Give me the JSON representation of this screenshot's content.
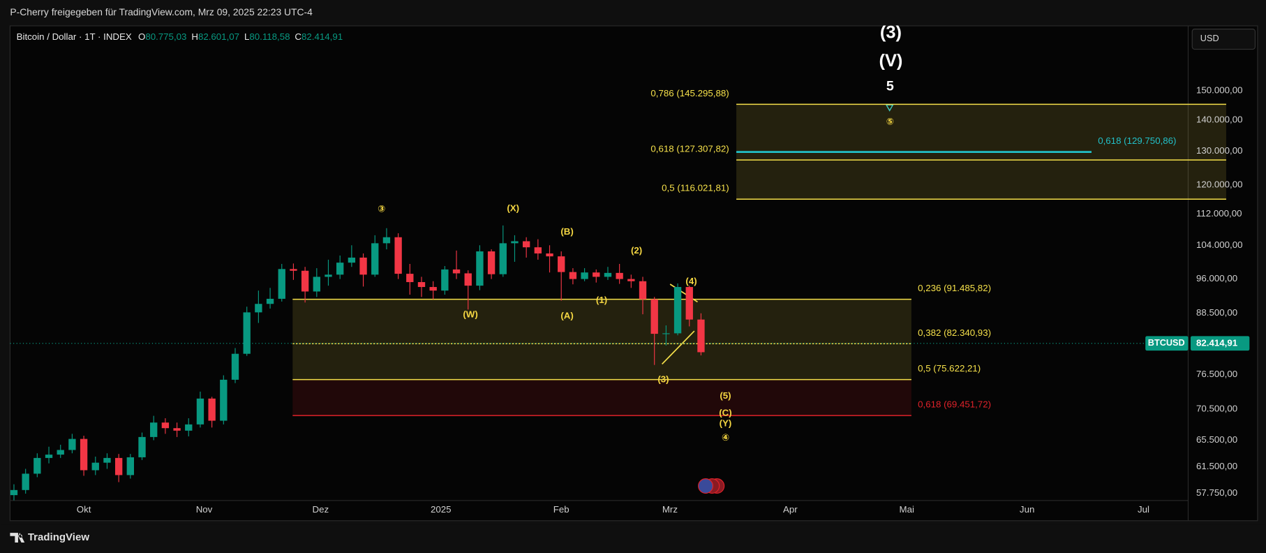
{
  "header": {
    "publisher": "P-Cherry freigegeben für TradingView.com, Mrz 09, 2025 22:23 UTC-4"
  },
  "chart_data": {
    "type": "candlestick",
    "title": "Bitcoin / Dollar · 1T · INDEX",
    "ohlc_summary": [
      {
        "key": "O",
        "value": 80775.03,
        "label": "80.775,03"
      },
      {
        "key": "H",
        "value": 82601.07,
        "label": "82.601,07"
      },
      {
        "key": "L",
        "value": 80118.58,
        "label": "80.118,58"
      },
      {
        "key": "C",
        "value": 82414.91,
        "label": "82.414,91"
      }
    ],
    "currency": "USD",
    "symbol": "BTCUSD",
    "last_price": {
      "value": 82414.91,
      "label": "82.414,91"
    },
    "x": [
      -18,
      -15,
      -12,
      -9,
      -6,
      -3,
      0,
      3,
      6,
      9,
      12,
      15,
      18,
      21,
      24,
      27,
      30,
      33,
      36,
      39,
      42,
      45,
      48,
      51,
      54,
      57,
      60,
      63,
      66,
      69,
      72,
      75,
      78,
      81,
      84,
      87,
      90,
      93,
      96,
      99,
      102,
      105,
      108,
      111,
      114,
      117,
      120,
      123,
      126,
      129,
      132,
      135,
      138,
      141,
      144,
      147,
      150,
      153,
      156,
      159
    ],
    "open": [
      57500,
      58200,
      60500,
      62800,
      63300,
      64000,
      65700,
      61000,
      62100,
      62800,
      60300,
      62900,
      66000,
      68300,
      67400,
      67000,
      68000,
      72300,
      68600,
      75600,
      80400,
      88700,
      90500,
      91600,
      98300,
      97900,
      93200,
      96500,
      97000,
      99800,
      101000,
      97000,
      104500,
      106000,
      97200,
      95300,
      94200,
      93400,
      98200,
      97300,
      94500,
      102500,
      97100,
      104500,
      105000,
      103500,
      102000,
      101300,
      97600,
      96000,
      97500,
      96500,
      97400,
      96000,
      95500,
      91500,
      84300,
      84400,
      94200,
      87200
    ],
    "high": [
      59000,
      61200,
      63500,
      64500,
      64800,
      66500,
      66200,
      63000,
      63500,
      63400,
      63400,
      66700,
      69400,
      69000,
      68300,
      69000,
      73500,
      72600,
      76400,
      81500,
      89900,
      93400,
      94000,
      99500,
      99600,
      98800,
      98500,
      100500,
      101500,
      104000,
      102000,
      106500,
      108300,
      107000,
      99500,
      96500,
      95500,
      99000,
      102700,
      98000,
      104000,
      103000,
      109000,
      106500,
      106000,
      105500,
      104000,
      102500,
      98500,
      98500,
      98200,
      98800,
      99500,
      97000,
      96500,
      92000,
      86000,
      95000,
      94500,
      88500
    ],
    "low": [
      56800,
      57700,
      60000,
      62000,
      62800,
      63500,
      60200,
      60300,
      61200,
      59300,
      59800,
      62500,
      65500,
      66500,
      66000,
      66100,
      67500,
      67500,
      68000,
      75000,
      80000,
      86500,
      89500,
      91000,
      95800,
      90800,
      92000,
      94500,
      96000,
      98800,
      94300,
      96500,
      103000,
      96000,
      92500,
      92000,
      91500,
      92500,
      96000,
      89300,
      93500,
      96000,
      96500,
      100000,
      101000,
      100500,
      97500,
      91200,
      94800,
      95500,
      95200,
      95800,
      94900,
      94000,
      88300,
      78300,
      82000,
      84000,
      85800,
      80100
    ],
    "close": [
      58200,
      60500,
      62800,
      63300,
      64000,
      65700,
      61000,
      62100,
      62800,
      60300,
      62900,
      66000,
      68300,
      67400,
      67000,
      68000,
      72300,
      68600,
      75600,
      80400,
      88700,
      90500,
      91600,
      98300,
      97900,
      93200,
      96500,
      97000,
      99800,
      101000,
      97000,
      104500,
      106000,
      97200,
      95300,
      94200,
      93400,
      98200,
      97300,
      94500,
      102500,
      97100,
      104500,
      105000,
      103500,
      102000,
      101300,
      97600,
      96000,
      97500,
      96500,
      97400,
      96000,
      95500,
      91500,
      84300,
      84400,
      94200,
      87200,
      80700
    ],
    "up_color": "#089981",
    "down_color": "#f23645",
    "log_scale": true,
    "grid": false,
    "xlim": [
      -19,
      284.5
    ],
    "xticks": [
      {
        "value": 0,
        "label": "Okt"
      },
      {
        "value": 31,
        "label": "Nov"
      },
      {
        "value": 61,
        "label": "Dez"
      },
      {
        "value": 92,
        "label": "2025"
      },
      {
        "value": 123,
        "label": "Feb"
      },
      {
        "value": 151,
        "label": "Mrz"
      },
      {
        "value": 182,
        "label": "Apr"
      },
      {
        "value": 212,
        "label": "Mai"
      },
      {
        "value": 243,
        "label": "Jun"
      },
      {
        "value": 273,
        "label": "Jul"
      }
    ],
    "ylim": [
      56770,
      175000
    ],
    "yticks": [
      {
        "value": 150000,
        "label": "150.000,00"
      },
      {
        "value": 140000,
        "label": "140.000,00"
      },
      {
        "value": 130000,
        "label": "130.000,00"
      },
      {
        "value": 120000,
        "label": "120.000,00"
      },
      {
        "value": 112000,
        "label": "112.000,00"
      },
      {
        "value": 104000,
        "label": "104.000,00"
      },
      {
        "value": 96000,
        "label": "96.000,00"
      },
      {
        "value": 88500,
        "label": "88.500,00"
      },
      {
        "value": 76500,
        "label": "76.500,00"
      },
      {
        "value": 70500,
        "label": "70.500,00"
      },
      {
        "value": 65500,
        "label": "65.500,00"
      },
      {
        "value": 61500,
        "label": "61.500,00"
      },
      {
        "value": 57750,
        "label": "57.750,00"
      }
    ],
    "fib_zones": [
      {
        "x": [
          53.8,
          213.2
        ],
        "label_side": "right",
        "levels": [
          {
            "price": 91485.82,
            "label": "0,236 (91.485,82)",
            "color": "#f5e04a",
            "style": "solid"
          },
          {
            "price": 82340.93,
            "label": "0,382 (82.340,93)",
            "color": "#f5e04a",
            "style": "dotted"
          },
          {
            "price": 75622.21,
            "label": "0,5 (75.622,21)",
            "color": "#f5e04a",
            "style": "solid"
          },
          {
            "price": 69451.72,
            "label": "0,618 (69.451,72)",
            "color": "#e0222a",
            "style": "solid"
          }
        ]
      },
      {
        "x": [
          168.1,
          294.3
        ],
        "label_side": "left",
        "levels": [
          {
            "price": 145295.88,
            "label": "0,786 (145.295,88)",
            "color": "#f5e04a",
            "style": "solid"
          },
          {
            "price": 127307.82,
            "label": "0,618 (127.307,82)",
            "color": "#f5e04a",
            "style": "solid"
          },
          {
            "price": 116021.81,
            "label": "0,5 (116.021,81)",
            "color": "#f5e04a",
            "style": "solid"
          }
        ]
      }
    ],
    "fib_line": {
      "x": [
        168.1,
        259.6
      ],
      "price": 129750.86,
      "label": "0,618 (129.750,86)",
      "color": "#22c0c8"
    },
    "annotations": [
      {
        "text": "③",
        "x": 76.7,
        "y": 113200,
        "color": "#f5d742"
      },
      {
        "text": "(X)",
        "x": 110.6,
        "y": 113400,
        "color": "#f5d742"
      },
      {
        "text": "(B)",
        "x": 124.5,
        "y": 107300,
        "color": "#f5d742"
      },
      {
        "text": "(2)",
        "x": 142.4,
        "y": 102600,
        "color": "#f5d742"
      },
      {
        "text": "(4)",
        "x": 156.5,
        "y": 95400,
        "color": "#f5d742"
      },
      {
        "text": "(1)",
        "x": 133.4,
        "y": 91200,
        "color": "#f5d742"
      },
      {
        "text": "(W)",
        "x": 99.6,
        "y": 88200,
        "color": "#f5d742"
      },
      {
        "text": "(A)",
        "x": 124.5,
        "y": 87900,
        "color": "#f5d742"
      },
      {
        "text": "(3)",
        "x": 149.3,
        "y": 75600,
        "color": "#f5d742"
      },
      {
        "text": "(5)",
        "x": 165.3,
        "y": 72700,
        "color": "#f5d742"
      },
      {
        "text": "(C)",
        "x": 165.3,
        "y": 69800,
        "color": "#f5d742"
      },
      {
        "text": "(Y)",
        "x": 165.3,
        "y": 68100,
        "color": "#f5d742"
      },
      {
        "text": "④",
        "x": 165.3,
        "y": 65800,
        "color": "#f5d742"
      },
      {
        "text": "⑤",
        "x": 207.7,
        "y": 139200,
        "color": "#f5d742"
      },
      {
        "text": "(3)",
        "x": 207.9,
        "y": 171900,
        "color": "#ffffff"
      },
      {
        "text": "(V)",
        "x": 207.9,
        "y": 160700,
        "color": "#ffffff"
      },
      {
        "text": "5",
        "x": 207.7,
        "y": 151400,
        "color": "#ffffff"
      }
    ]
  },
  "footer": {
    "brand": "TradingView"
  }
}
